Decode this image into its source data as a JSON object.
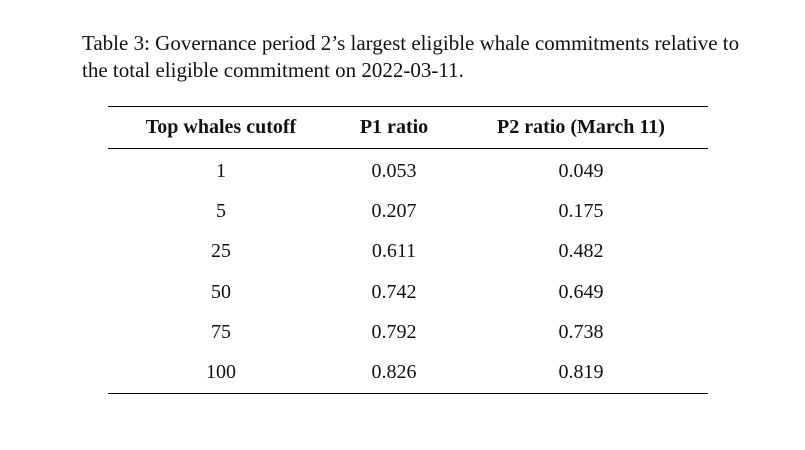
{
  "caption": {
    "label": "Table 3:",
    "text": "Governance period 2’s largest eligible whale commitments relative to the total eligible commitment on 2022-03-11."
  },
  "table": {
    "headers": [
      "Top whales cutoff",
      "P1 ratio",
      "P2 ratio (March 11)"
    ],
    "rows": [
      [
        "1",
        "0.053",
        "0.049"
      ],
      [
        "5",
        "0.207",
        "0.175"
      ],
      [
        "25",
        "0.611",
        "0.482"
      ],
      [
        "50",
        "0.742",
        "0.649"
      ],
      [
        "75",
        "0.792",
        "0.738"
      ],
      [
        "100",
        "0.826",
        "0.819"
      ]
    ]
  }
}
